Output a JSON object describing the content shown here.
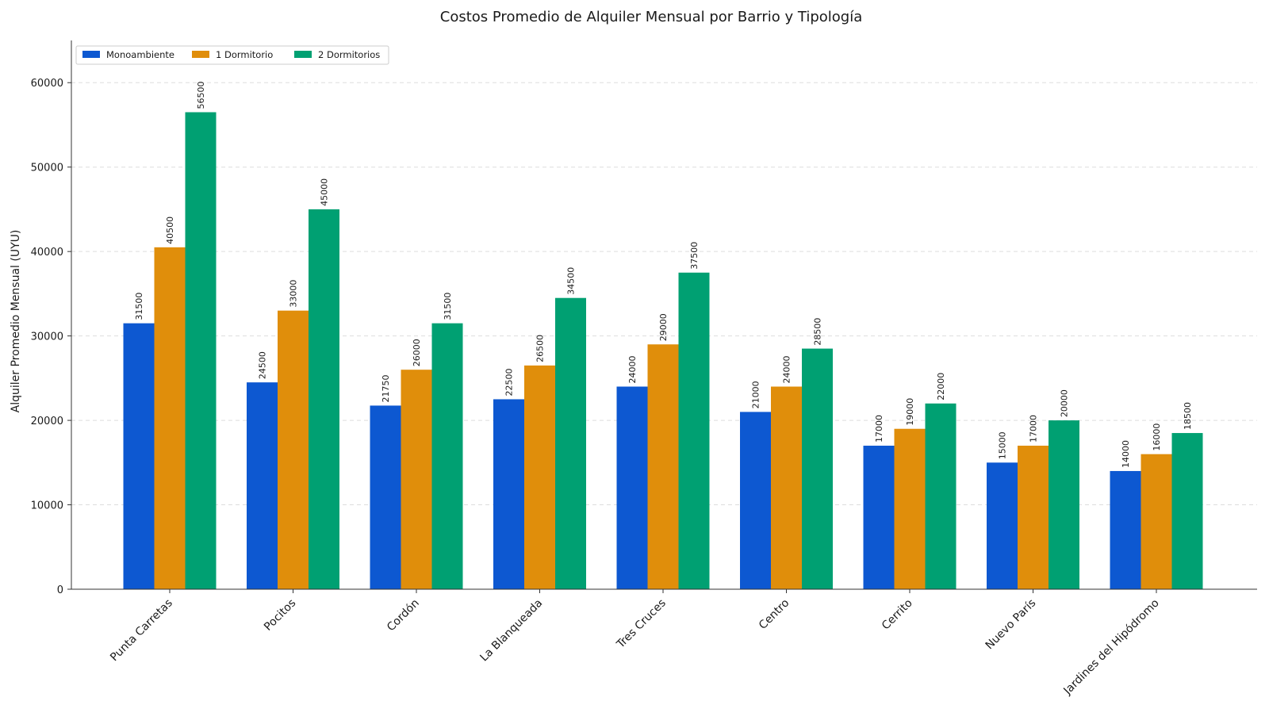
{
  "chart_data": {
    "type": "bar",
    "title": "Costos Promedio de Alquiler Mensual por Barrio y Tipología",
    "xlabel": "",
    "ylabel": "Alquiler Promedio Mensual (UYU)",
    "ylim": [
      0,
      65000
    ],
    "yticks": [
      0,
      10000,
      20000,
      30000,
      40000,
      50000,
      60000
    ],
    "grid": true,
    "legend_position": "top-left",
    "categories": [
      "Punta Carretas",
      "Pocitos",
      "Cordón",
      "La Blanqueada",
      "Tres Cruces",
      "Centro",
      "Cerrito",
      "Nuevo París",
      "Jardines del Hipódromo"
    ],
    "series": [
      {
        "name": "Monoambiente",
        "color": "#0d58d1",
        "values": [
          31500,
          24500,
          21750,
          22500,
          24000,
          21000,
          17000,
          15000,
          14000
        ]
      },
      {
        "name": "1 Dormitorio",
        "color": "#e08e0b",
        "values": [
          40500,
          33000,
          26000,
          26500,
          29000,
          24000,
          19000,
          17000,
          16000
        ]
      },
      {
        "name": "2 Dormitorios",
        "color": "#00a072",
        "values": [
          56500,
          45000,
          31500,
          34500,
          37500,
          28500,
          22000,
          20000,
          18500
        ]
      }
    ]
  }
}
